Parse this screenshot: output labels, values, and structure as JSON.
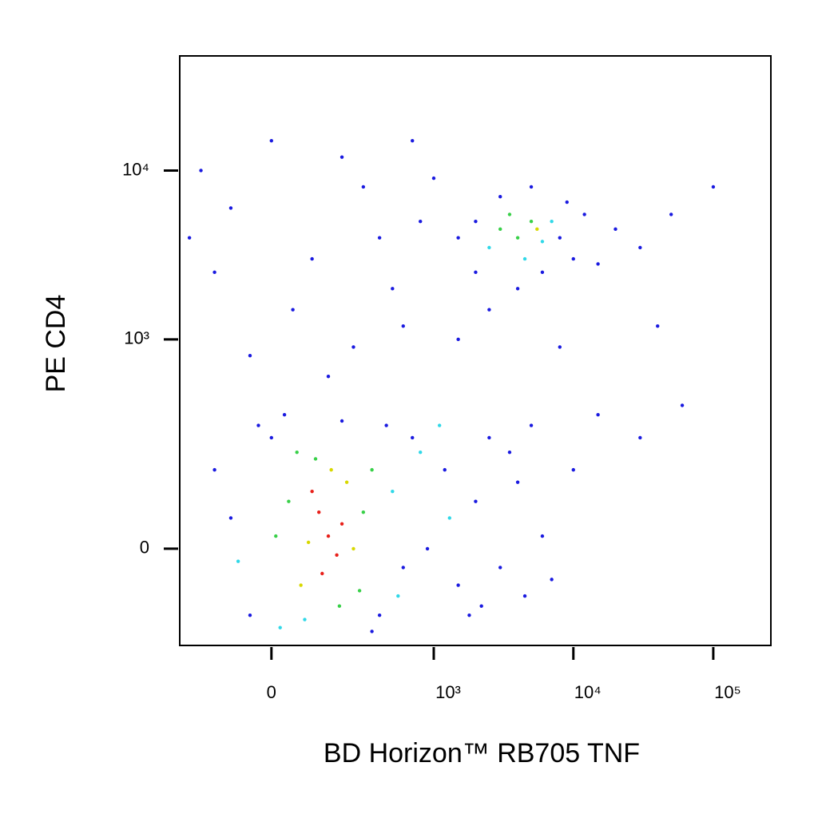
{
  "chart_data": {
    "type": "scatter",
    "xlabel": "BD Horizon™ RB705 TNF",
    "ylabel": "PE  CD4",
    "xscale": "biexponential",
    "yscale": "biexponential",
    "xlim": [
      -299,
      258000
    ],
    "ylim": [
      -201,
      47600
    ],
    "xticks": [
      0,
      {
        "value": 1000,
        "label": "10³"
      },
      {
        "value": 10000,
        "label": "10⁴"
      },
      {
        "value": 100000,
        "label": "10⁵"
      }
    ],
    "yticks": [
      0,
      {
        "value": 1000,
        "label": "10³"
      },
      {
        "value": 10000,
        "label": "10⁴"
      }
    ],
    "x": [
      150,
      120,
      180,
      100,
      200,
      130,
      90,
      220,
      160,
      250,
      70,
      110,
      300,
      40,
      280,
      60,
      190,
      350,
      -100,
      -50,
      0,
      20,
      400,
      500,
      600,
      -150,
      30,
      200,
      700,
      450,
      -80,
      350,
      10,
      80,
      550,
      -30,
      900,
      1200,
      1500,
      2000,
      2500,
      3000,
      4000,
      5000,
      6000,
      1100,
      1800,
      3500,
      7000,
      10000,
      15000,
      800,
      2200,
      4500,
      30000,
      1300,
      3000,
      4000,
      5000,
      3500,
      6000,
      2500,
      4500,
      7000,
      2000,
      8000,
      10000,
      12000,
      1500,
      3000,
      5000,
      6000,
      20000,
      2000,
      9000,
      4000,
      15000,
      30000,
      50000,
      5500,
      -200,
      -100,
      0,
      100,
      300,
      500,
      800,
      -150,
      200,
      50,
      400,
      1000,
      -50,
      600,
      150,
      250,
      1500,
      2500,
      700,
      -250,
      60000,
      40000,
      100000,
      8000
    ],
    "y": [
      20,
      60,
      -10,
      100,
      40,
      -40,
      10,
      120,
      150,
      0,
      -60,
      180,
      60,
      80,
      -70,
      200,
      -100,
      150,
      50,
      -120,
      250,
      -150,
      -120,
      100,
      -30,
      150,
      350,
      320,
      250,
      300,
      -20,
      -160,
      20,
      -130,
      -80,
      300,
      0,
      150,
      -60,
      80,
      250,
      -30,
      120,
      300,
      20,
      300,
      -120,
      200,
      -50,
      150,
      350,
      200,
      -100,
      -80,
      250,
      50,
      4500,
      4000,
      5000,
      5500,
      3800,
      3500,
      3000,
      5000,
      5000,
      4000,
      3000,
      5500,
      4000,
      7000,
      8000,
      2500,
      4500,
      2500,
      6500,
      2000,
      2800,
      3500,
      5500,
      4500,
      10000,
      6000,
      15000,
      3000,
      8000,
      2000,
      5000,
      2500,
      12000,
      1500,
      4000,
      9000,
      800,
      1200,
      600,
      900,
      1000,
      1500,
      15000,
      4000,
      400,
      1200,
      8000,
      900
    ],
    "colors": [
      "#e8201a",
      "#e8201a",
      "#e8201a",
      "#e8201a",
      "#e8201a",
      "#e8201a",
      "#d8d800",
      "#d8d800",
      "#d8d800",
      "#d8d800",
      "#d8d800",
      "#38d048",
      "#38d048",
      "#38d048",
      "#38d048",
      "#38d048",
      "#38d048",
      "#38d048",
      "#1a1ae0",
      "#1a1ae0",
      "#1a1ae0",
      "#30d8e8",
      "#1a1ae0",
      "#30d8e8",
      "#1a1ae0",
      "#1a1ae0",
      "#1a1ae0",
      "#1a1ae0",
      "#1a1ae0",
      "#1a1ae0",
      "#30d8e8",
      "#1a1ae0",
      "#38d048",
      "#30d8e8",
      "#30d8e8",
      "#1a1ae0",
      "#1a1ae0",
      "#1a1ae0",
      "#1a1ae0",
      "#1a1ae0",
      "#1a1ae0",
      "#1a1ae0",
      "#1a1ae0",
      "#1a1ae0",
      "#1a1ae0",
      "#30d8e8",
      "#1a1ae0",
      "#1a1ae0",
      "#1a1ae0",
      "#1a1ae0",
      "#1a1ae0",
      "#30d8e8",
      "#1a1ae0",
      "#1a1ae0",
      "#1a1ae0",
      "#30d8e8",
      "#38d048",
      "#38d048",
      "#38d048",
      "#38d048",
      "#30d8e8",
      "#30d8e8",
      "#30d8e8",
      "#30d8e8",
      "#1a1ae0",
      "#1a1ae0",
      "#1a1ae0",
      "#1a1ae0",
      "#1a1ae0",
      "#1a1ae0",
      "#1a1ae0",
      "#1a1ae0",
      "#1a1ae0",
      "#1a1ae0",
      "#1a1ae0",
      "#1a1ae0",
      "#1a1ae0",
      "#1a1ae0",
      "#1a1ae0",
      "#d8d800",
      "#1a1ae0",
      "#1a1ae0",
      "#1a1ae0",
      "#1a1ae0",
      "#1a1ae0",
      "#1a1ae0",
      "#1a1ae0",
      "#1a1ae0",
      "#1a1ae0",
      "#1a1ae0",
      "#1a1ae0",
      "#1a1ae0",
      "#1a1ae0",
      "#1a1ae0",
      "#1a1ae0",
      "#1a1ae0",
      "#1a1ae0",
      "#1a1ae0",
      "#1a1ae0",
      "#1a1ae0",
      "#1a1ae0",
      "#1a1ae0",
      "#1a1ae0",
      "#1a1ae0"
    ]
  }
}
